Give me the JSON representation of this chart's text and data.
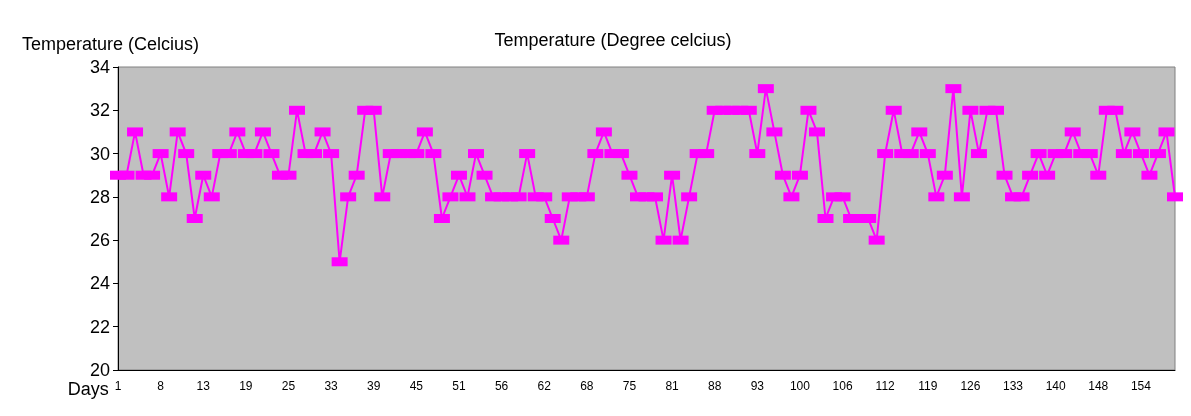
{
  "chart_data": {
    "type": "line",
    "title": "Temperature (Degree celcius)",
    "xlabel": "Days",
    "ylabel": "Temperature (Celcius)",
    "categories": [
      "1",
      null,
      null,
      null,
      null,
      "8",
      null,
      null,
      null,
      null,
      "13",
      null,
      null,
      null,
      null,
      "19",
      null,
      null,
      null,
      null,
      "25",
      null,
      null,
      null,
      null,
      "33",
      null,
      null,
      null,
      null,
      "39",
      null,
      null,
      null,
      null,
      "45",
      null,
      null,
      null,
      null,
      "51",
      null,
      null,
      null,
      null,
      "56",
      null,
      null,
      null,
      null,
      "62",
      null,
      null,
      null,
      null,
      "68",
      null,
      null,
      null,
      null,
      "75",
      null,
      null,
      null,
      null,
      "81",
      null,
      null,
      null,
      null,
      "88",
      null,
      null,
      null,
      null,
      "93",
      null,
      null,
      null,
      null,
      "100",
      null,
      null,
      null,
      null,
      "106",
      null,
      null,
      null,
      null,
      "112",
      null,
      null,
      null,
      null,
      "119",
      null,
      null,
      null,
      null,
      "126",
      null,
      null,
      null,
      null,
      "133",
      null,
      null,
      null,
      null,
      "140",
      null,
      null,
      null,
      null,
      "148",
      null,
      null,
      null,
      null,
      "154",
      null,
      null,
      null,
      null
    ],
    "series": [
      {
        "color": "#ff00ff",
        "values": [
          29,
          29,
          31,
          29,
          29,
          30,
          28,
          31,
          30,
          27,
          29,
          28,
          30,
          30,
          31,
          30,
          30,
          31,
          30,
          29,
          29,
          32,
          30,
          30,
          31,
          30,
          25,
          28,
          29,
          32,
          32,
          28,
          30,
          30,
          30,
          30,
          31,
          30,
          27,
          28,
          29,
          28,
          30,
          29,
          28,
          28,
          28,
          28,
          30,
          28,
          28,
          27,
          26,
          28,
          28,
          28,
          30,
          31,
          30,
          30,
          29,
          28,
          28,
          28,
          26,
          29,
          26,
          28,
          30,
          30,
          32,
          32,
          32,
          32,
          32,
          30,
          33,
          31,
          29,
          28,
          29,
          32,
          31,
          27,
          28,
          28,
          27,
          27,
          27,
          26,
          30,
          32,
          30,
          30,
          31,
          30,
          28,
          29,
          33,
          28,
          32,
          30,
          32,
          32,
          29,
          28,
          28,
          29,
          30,
          29,
          30,
          30,
          31,
          30,
          30,
          29,
          32,
          32,
          30,
          31,
          30,
          29,
          30,
          31,
          28
        ]
      }
    ],
    "ylim": [
      20,
      34
    ],
    "yticks": [
      20,
      22,
      24,
      26,
      28,
      30,
      32,
      34
    ],
    "marker": "square",
    "line_style": "solid"
  }
}
